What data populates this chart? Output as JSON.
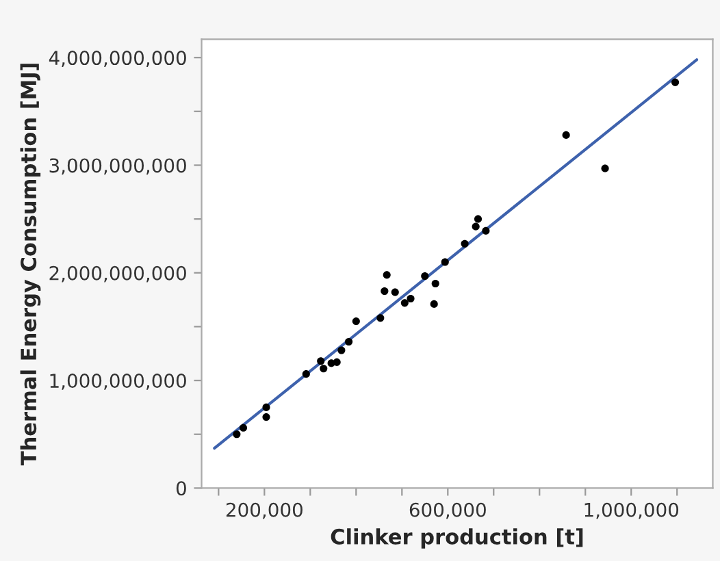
{
  "chart_data": {
    "type": "scatter",
    "xlabel": "Clinker production [t]",
    "ylabel": "Thermal Energy Consumption [MJ]",
    "xlim": [
      63000,
      1178000
    ],
    "ylim": [
      0,
      4170000000
    ],
    "xticks": [
      {
        "value": 100000,
        "label": null
      },
      {
        "value": 200000,
        "label": "200,000"
      },
      {
        "value": 300000,
        "label": null
      },
      {
        "value": 400000,
        "label": null
      },
      {
        "value": 500000,
        "label": null
      },
      {
        "value": 600000,
        "label": "600,000"
      },
      {
        "value": 700000,
        "label": null
      },
      {
        "value": 800000,
        "label": null
      },
      {
        "value": 900000,
        "label": null
      },
      {
        "value": 1000000,
        "label": "1,000,000"
      },
      {
        "value": 1100000,
        "label": null
      }
    ],
    "yticks": [
      {
        "value": 0,
        "label": "0"
      },
      {
        "value": 500000000,
        "label": null
      },
      {
        "value": 1000000000,
        "label": "1,000,000,000"
      },
      {
        "value": 1500000000,
        "label": null
      },
      {
        "value": 2000000000,
        "label": "2,000,000,000"
      },
      {
        "value": 2500000000,
        "label": null
      },
      {
        "value": 3000000000,
        "label": "3,000,000,000"
      },
      {
        "value": 3500000000,
        "label": null
      },
      {
        "value": 4000000000,
        "label": "4,000,000,000"
      }
    ],
    "grid": false,
    "series": [
      {
        "marker": "circle",
        "color": "#000000",
        "x": [
          139600,
          154000,
          204000,
          204000,
          291000,
          323000,
          329000,
          346000,
          358000,
          368000,
          384000,
          400000,
          453000,
          462000,
          467000,
          485000,
          506000,
          519000,
          550000,
          570000,
          573000,
          594000,
          637000,
          661000,
          666000,
          683000,
          858000,
          943000,
          1096000
        ],
        "values": [
          500000000,
          560000000,
          750000000,
          660000000,
          1060000000,
          1180000000,
          1110000000,
          1160000000,
          1170000000,
          1280000000,
          1360000000,
          1550000000,
          1580000000,
          1830000000,
          1980000000,
          1820000000,
          1720000000,
          1760000000,
          1970000000,
          1710000000,
          1900000000,
          2100000000,
          2270000000,
          2430000000,
          2500000000,
          2390000000,
          3280000000,
          2970000000,
          3770000000
        ]
      },
      {
        "type": "line",
        "color": "#3e62ad",
        "x": [
          91000,
          1143000
        ],
        "values": [
          370000000,
          3980000000
        ]
      }
    ]
  }
}
